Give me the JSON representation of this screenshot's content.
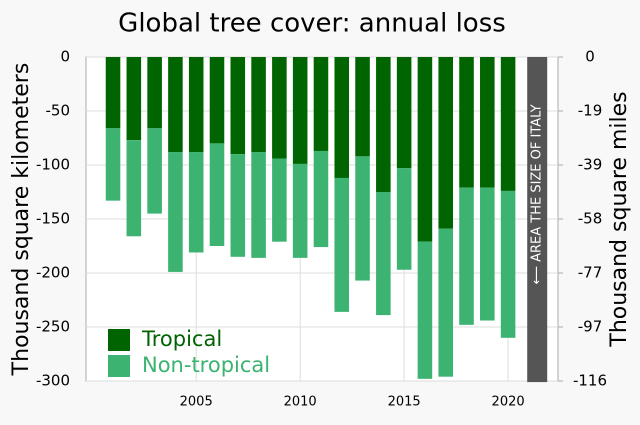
{
  "chart_data": {
    "type": "stacked-bar",
    "title": "Global tree cover: annual loss",
    "y_label": "Thousand square kilometers",
    "y2_label": "Thousand square miles",
    "x": [
      2001,
      2002,
      2003,
      2004,
      2005,
      2006,
      2007,
      2008,
      2009,
      2010,
      2011,
      2012,
      2013,
      2014,
      2015,
      2016,
      2017,
      2018,
      2019,
      2020
    ],
    "series": [
      {
        "name": "Tropical",
        "color": "#006400",
        "values": [
          -66,
          -77,
          -66,
          -88,
          -88,
          -80,
          -90,
          -88,
          -94,
          -99,
          -87,
          -112,
          -92,
          -125,
          -103,
          -171,
          -159,
          -121,
          -121,
          -124
        ]
      },
      {
        "name": "Non-tropical",
        "color": "#3cb371",
        "values": [
          -67,
          -89,
          -79,
          -111,
          -93,
          -95,
          -95,
          -98,
          -77,
          -87,
          -89,
          -124,
          -115,
          -114,
          -94,
          -127,
          -137,
          -127,
          -123,
          -136
        ]
      }
    ],
    "annotation": {
      "text": "⟵ AREA THE SIZE OF ITALY",
      "x": 2021.4,
      "value": -301,
      "color": "#555555"
    },
    "xlim": [
      1999.7,
      2022.4
    ],
    "xticks": [
      2005,
      2010,
      2015,
      2020
    ],
    "ylim": [
      -300,
      0
    ],
    "yticks": [
      0,
      -50,
      -100,
      -150,
      -200,
      -250,
      -300
    ],
    "y2lim": [
      -115.8,
      0
    ],
    "y2ticks": [
      0,
      {
        "value": -19.3,
        "label": "-19"
      },
      {
        "value": -38.6,
        "label": "-39"
      },
      {
        "value": -57.9,
        "label": "-58"
      },
      {
        "value": -77.2,
        "label": "-77"
      },
      {
        "value": -96.5,
        "label": "-97"
      },
      {
        "value": -115.8,
        "label": "-116"
      }
    ],
    "grid": true,
    "legend": "lower left"
  }
}
